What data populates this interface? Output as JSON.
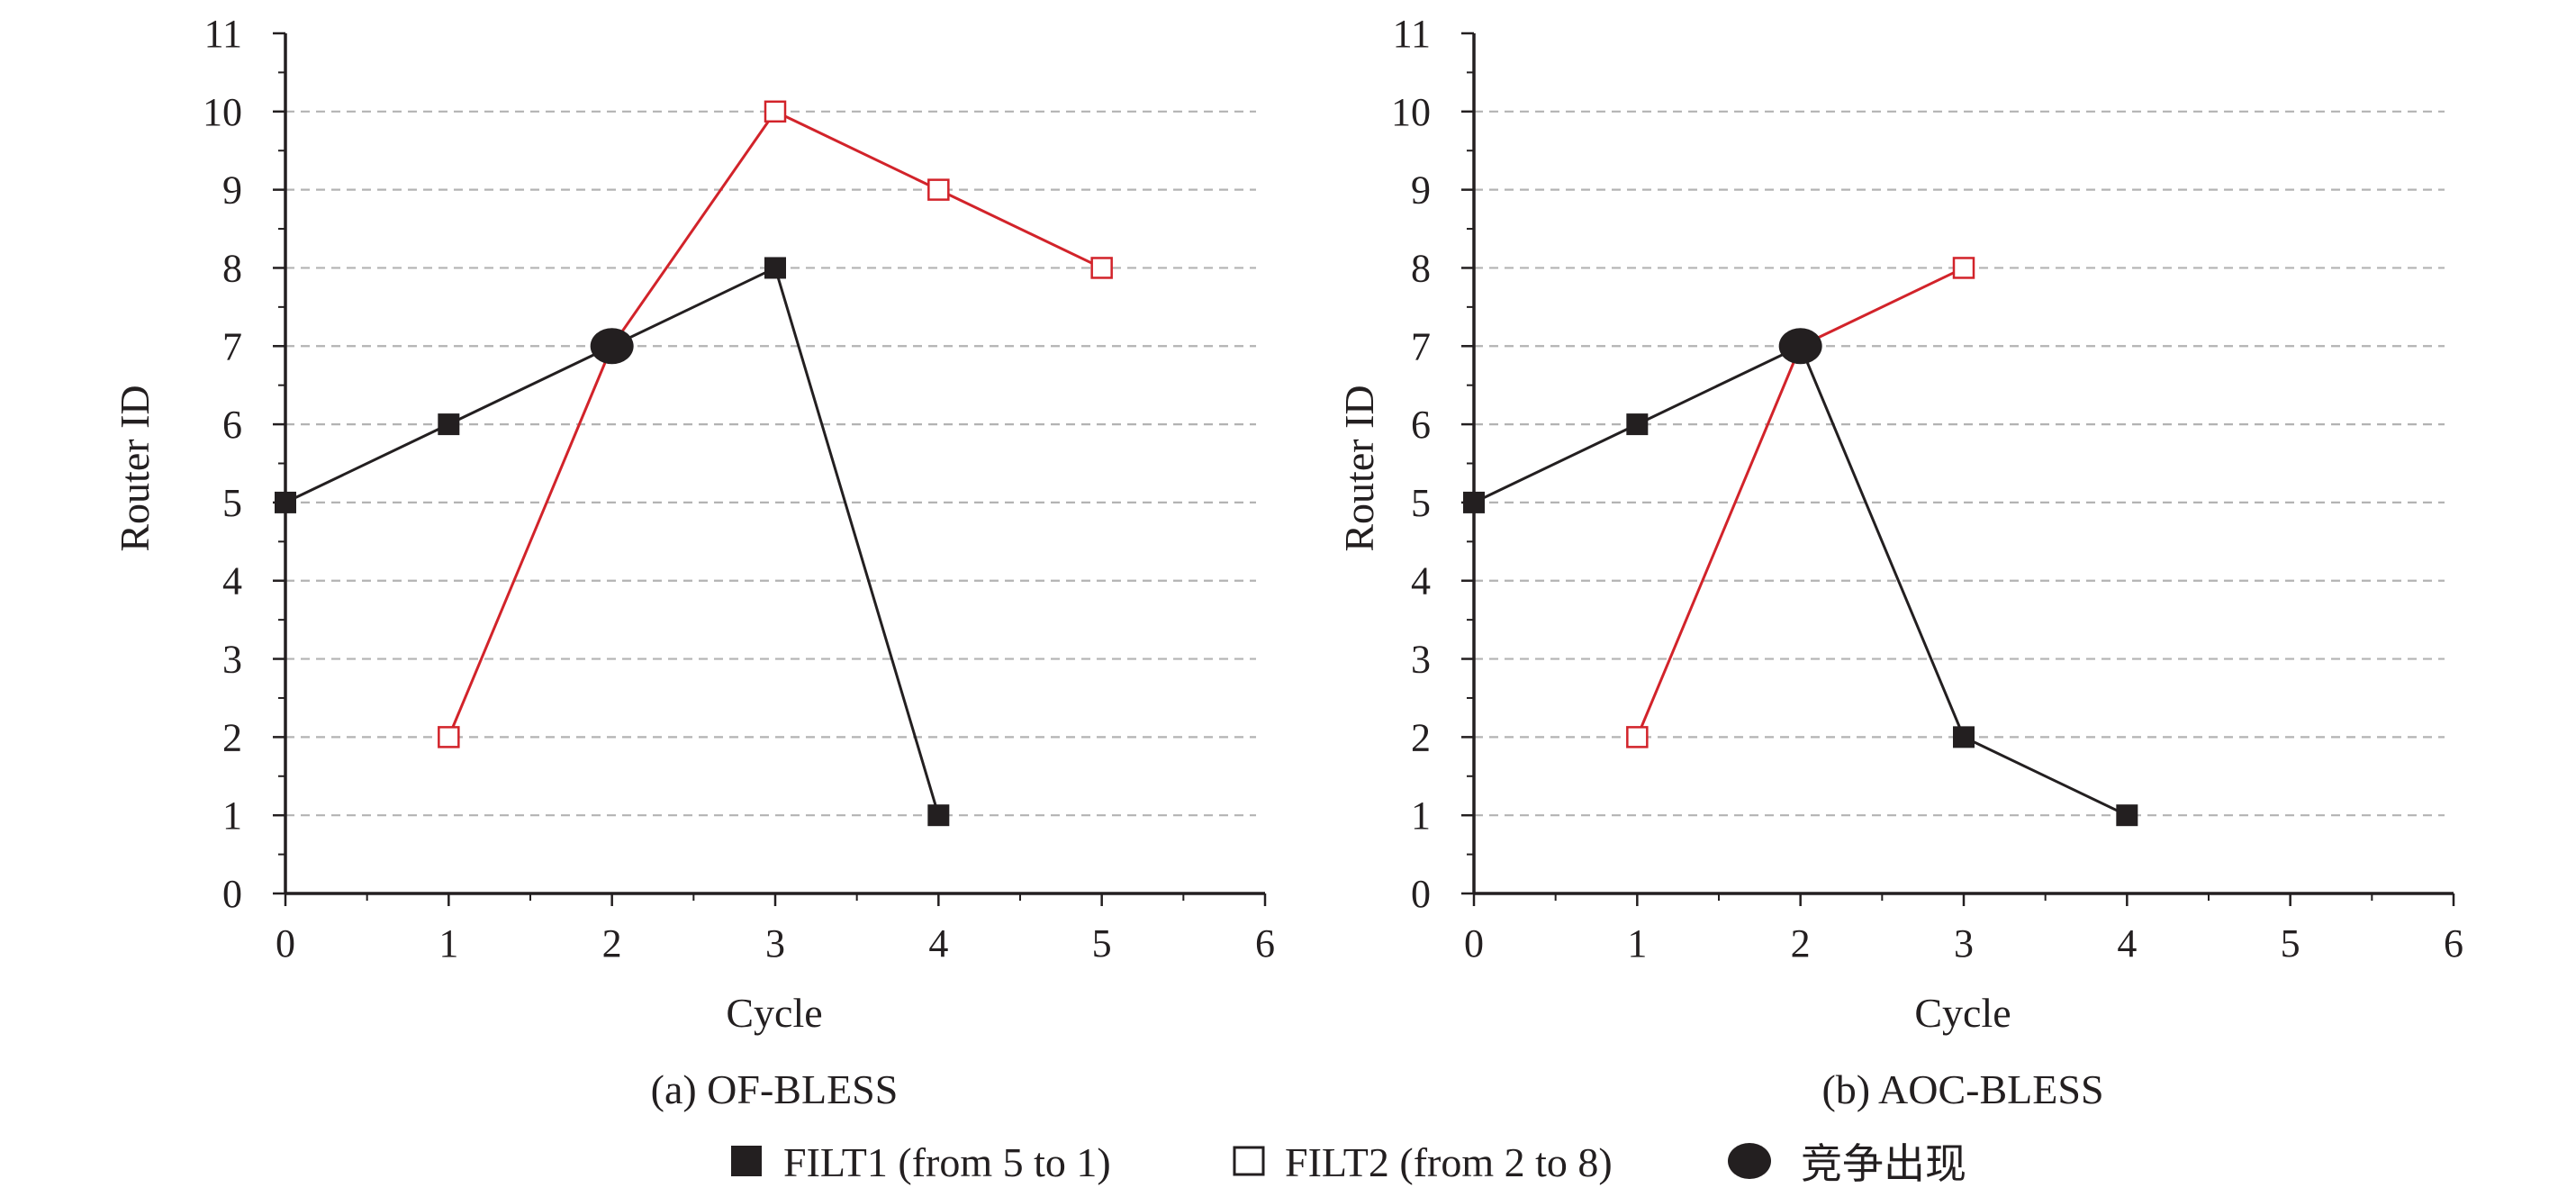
{
  "chart_data": [
    {
      "type": "line",
      "caption": "(a) OF-BLESS",
      "xlabel": "Cycle",
      "ylabel": "Router ID",
      "xlim": [
        0,
        6
      ],
      "ylim": [
        0,
        11
      ],
      "xticks": [
        "0",
        "1",
        "2",
        "3",
        "4",
        "5",
        "6"
      ],
      "yticks": [
        "0",
        "1",
        "2",
        "3",
        "4",
        "5",
        "6",
        "7",
        "8",
        "9",
        "10",
        "11"
      ],
      "grid": "horizontal dashed at 1-10",
      "series": [
        {
          "name": "FILT1 (from 5 to 1)",
          "color": "#231f20",
          "marker": "filled-square",
          "x": [
            0,
            1,
            2,
            3,
            4
          ],
          "y": [
            5,
            6,
            7,
            8,
            1
          ]
        },
        {
          "name": "FILT2 (from 2 to 8)",
          "color": "#d2232a",
          "marker": "open-square",
          "x": [
            1,
            2,
            3,
            4,
            5
          ],
          "y": [
            2,
            7,
            10,
            9,
            8
          ]
        }
      ],
      "contention": [
        {
          "x": 2,
          "y": 7
        }
      ]
    },
    {
      "type": "line",
      "caption": "(b) AOC-BLESS",
      "xlabel": "Cycle",
      "ylabel": "Router ID",
      "xlim": [
        0,
        6
      ],
      "ylim": [
        0,
        11
      ],
      "xticks": [
        "0",
        "1",
        "2",
        "3",
        "4",
        "5",
        "6"
      ],
      "yticks": [
        "0",
        "1",
        "2",
        "3",
        "4",
        "5",
        "6",
        "7",
        "8",
        "9",
        "10",
        "11"
      ],
      "grid": "horizontal dashed at 1-10",
      "series": [
        {
          "name": "FILT1 (from 5 to 1)",
          "color": "#231f20",
          "marker": "filled-square",
          "x": [
            0,
            1,
            2,
            3,
            4
          ],
          "y": [
            5,
            6,
            7,
            2,
            1
          ]
        },
        {
          "name": "FILT2 (from 2 to 8)",
          "color": "#d2232a",
          "marker": "open-square",
          "x": [
            1,
            2,
            3
          ],
          "y": [
            2,
            7,
            8
          ]
        }
      ],
      "contention": [
        {
          "x": 2,
          "y": 7
        }
      ]
    }
  ],
  "legend": {
    "filt1": "FILT1 (from 5 to 1)",
    "filt2": "FILT2 (from 2 to 8)",
    "contention": "竞争出现"
  },
  "colors": {
    "axis": "#231f20",
    "grid": "#b3b3b3",
    "filt1": "#231f20",
    "filt2": "#d2232a"
  }
}
